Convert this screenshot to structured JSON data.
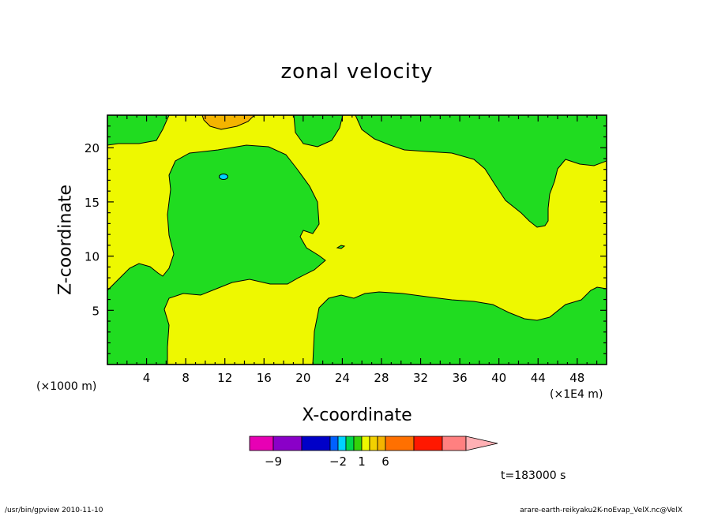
{
  "chart_data": {
    "type": "heatmap",
    "title": "zonal velocity",
    "xlabel": "X-coordinate",
    "ylabel": "Z-coordinate",
    "x_unit_left": "(×1000 m)",
    "x_unit_right": "(×1E4 m)",
    "xlim": [
      0,
      51
    ],
    "ylim": [
      0,
      23
    ],
    "x_ticks": [
      4,
      8,
      12,
      16,
      20,
      24,
      28,
      32,
      36,
      40,
      44,
      48
    ],
    "y_ticks": [
      5,
      10,
      15,
      20
    ],
    "colorbar_labels": [
      {
        "value": -9,
        "label": "−9"
      },
      {
        "value": -2,
        "label": "−2"
      },
      {
        "value": 1,
        "label": "1"
      },
      {
        "value": 6,
        "label": "6"
      }
    ],
    "colorbar_colors": [
      "#e700b4",
      "#8a00c8",
      "#0000c8",
      "#0060ff",
      "#00d2ff",
      "#00d84c",
      "#34d20a",
      "#eef800",
      "#f2d000",
      "#f4b400",
      "#ff7000",
      "#ff1800",
      "#ff8080",
      "#ffb0b4"
    ],
    "background_color": "#eef800",
    "region_colors": {
      "green": "#20dc20",
      "orange": "#f4b400",
      "cyan": "#00d2ff"
    }
  },
  "time_label": "t=183000 s",
  "footer_left": "/usr/bin/gpview   2010-11-10",
  "footer_right": "arare-earth-reikyaku2K-noEvap_VelX.nc@VelX"
}
